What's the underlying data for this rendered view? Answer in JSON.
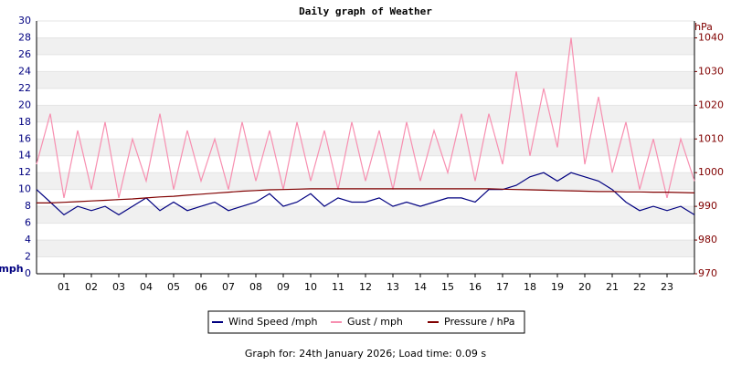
{
  "chart_data": {
    "type": "line",
    "title": "Daily graph of Weather",
    "ylabel": "mph",
    "y2label": "hPa",
    "footer": "Graph for: 24th January 2026; Load time: 0.09 s",
    "xlim": [
      0,
      24
    ],
    "xticks": [
      {
        "value": 1,
        "label": "01"
      },
      {
        "value": 2,
        "label": "02"
      },
      {
        "value": 3,
        "label": "03"
      },
      {
        "value": 4,
        "label": "04"
      },
      {
        "value": 5,
        "label": "05"
      },
      {
        "value": 6,
        "label": "06"
      },
      {
        "value": 7,
        "label": "07"
      },
      {
        "value": 8,
        "label": "08"
      },
      {
        "value": 9,
        "label": "09"
      },
      {
        "value": 10,
        "label": "10"
      },
      {
        "value": 11,
        "label": "11"
      },
      {
        "value": 12,
        "label": "12"
      },
      {
        "value": 13,
        "label": "13"
      },
      {
        "value": 14,
        "label": "14"
      },
      {
        "value": 15,
        "label": "15"
      },
      {
        "value": 16,
        "label": "16"
      },
      {
        "value": 17,
        "label": "17"
      },
      {
        "value": 18,
        "label": "18"
      },
      {
        "value": 19,
        "label": "19"
      },
      {
        "value": 20,
        "label": "20"
      },
      {
        "value": 21,
        "label": "21"
      },
      {
        "value": 22,
        "label": "22"
      },
      {
        "value": 23,
        "label": "23"
      }
    ],
    "ylim": [
      0,
      30
    ],
    "yticks": [
      0,
      2,
      4,
      6,
      8,
      10,
      12,
      14,
      16,
      18,
      20,
      22,
      24,
      26,
      28,
      30
    ],
    "y2lim": [
      970,
      1045
    ],
    "y2ticks": [
      970,
      980,
      990,
      1000,
      1010,
      1020,
      1030,
      1040
    ],
    "grid": true,
    "x": [
      0,
      0.5,
      1,
      1.5,
      2,
      2.5,
      3,
      3.5,
      4,
      4.5,
      5,
      5.5,
      6,
      6.5,
      7,
      7.5,
      8,
      8.5,
      9,
      9.5,
      10,
      10.5,
      11,
      11.5,
      12,
      12.5,
      13,
      13.5,
      14,
      14.5,
      15,
      15.5,
      16,
      16.5,
      17,
      17.5,
      18,
      18.5,
      19,
      19.5,
      20,
      20.5,
      21,
      21.5,
      22,
      22.5,
      23,
      23.5,
      24
    ],
    "series": [
      {
        "name": "Gust / mph",
        "color": "#f78fb0",
        "values": [
          13,
          19,
          9,
          17,
          10,
          18,
          9,
          16,
          11,
          19,
          10,
          17,
          11,
          16,
          10,
          18,
          11,
          17,
          10,
          18,
          11,
          17,
          10,
          18,
          11,
          17,
          10,
          18,
          11,
          17,
          12,
          19,
          11,
          19,
          13,
          24,
          14,
          22,
          15,
          28,
          13,
          21,
          12,
          18,
          10,
          16,
          9,
          16,
          11
        ]
      },
      {
        "name": "Wind Speed /mph",
        "color": "#000080",
        "values": [
          10,
          8.5,
          7,
          8,
          7.5,
          8,
          7,
          8,
          9,
          7.5,
          8.5,
          7.5,
          8,
          8.5,
          7.5,
          8,
          8.5,
          9.5,
          8,
          8.5,
          9.5,
          8,
          9,
          8.5,
          8.5,
          9,
          8,
          8.5,
          8,
          8.5,
          9,
          9,
          8.5,
          10,
          10,
          10.5,
          11.5,
          12,
          11,
          12,
          11.5,
          11,
          10,
          8.5,
          7.5,
          8,
          7.5,
          8,
          7
        ]
      },
      {
        "name": "Pressure / hPa",
        "color": "#800000",
        "axis": "y2",
        "values": [
          991,
          991,
          991.2,
          991.4,
          991.6,
          991.8,
          992,
          992.2,
          992.5,
          992.8,
          993,
          993.3,
          993.6,
          993.9,
          994.2,
          994.5,
          994.7,
          994.9,
          995,
          995.1,
          995.2,
          995.2,
          995.2,
          995.2,
          995.2,
          995.2,
          995.2,
          995.2,
          995.2,
          995.2,
          995.2,
          995.2,
          995.2,
          995.2,
          995.1,
          995,
          994.9,
          994.8,
          994.7,
          994.6,
          994.5,
          994.4,
          994.4,
          994.3,
          994.3,
          994.2,
          994.2,
          994.1,
          994
        ]
      }
    ],
    "legend_order": [
      1,
      0,
      2
    ]
  }
}
